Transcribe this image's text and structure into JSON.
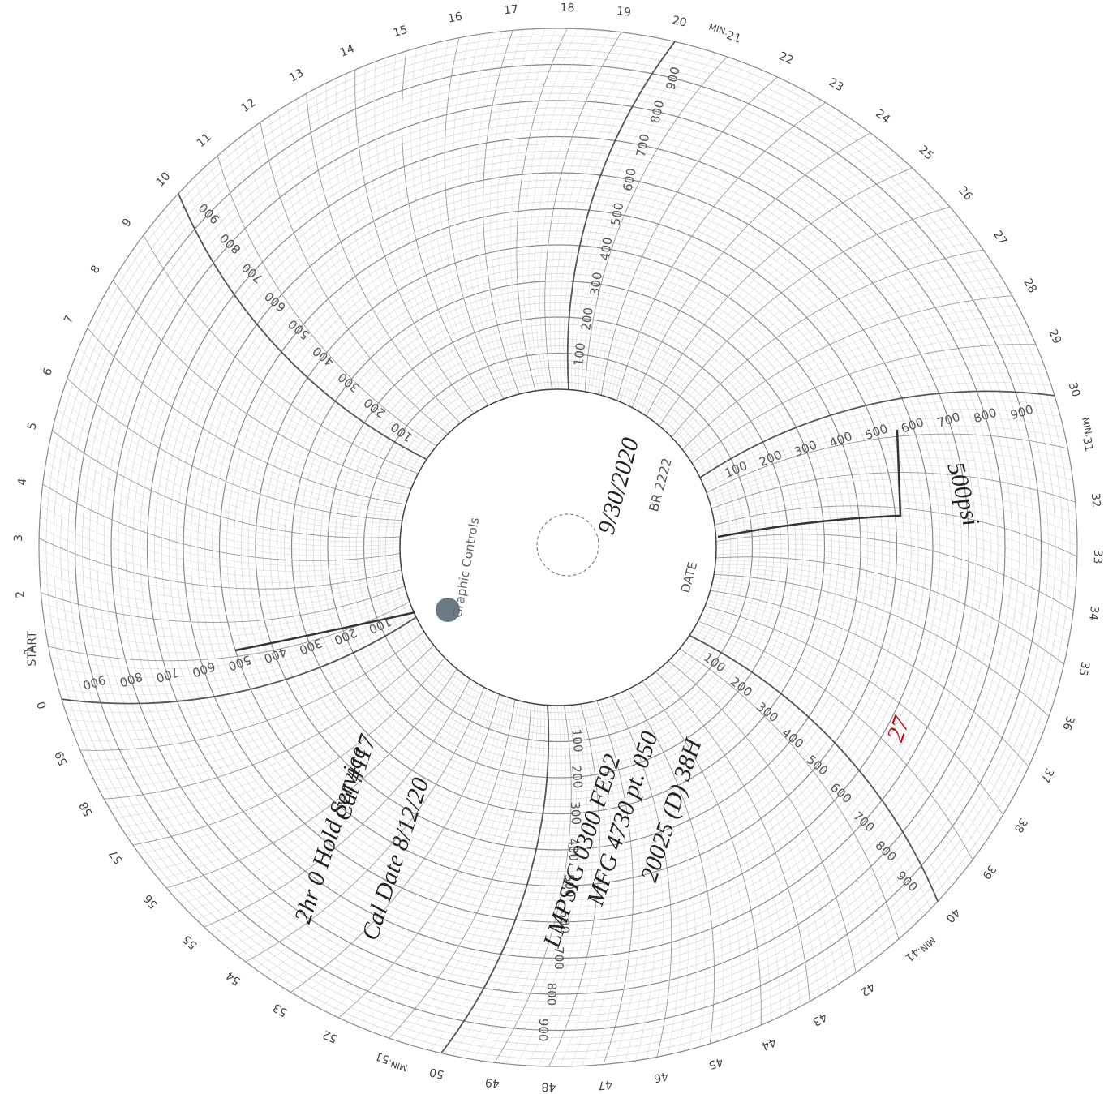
{
  "chart_paper": {
    "minute_labels": [
      0,
      1,
      2,
      3,
      4,
      5,
      6,
      7,
      8,
      9,
      10,
      11,
      12,
      13,
      14,
      15,
      16,
      17,
      18,
      19,
      20,
      21,
      22,
      23,
      24,
      25,
      26,
      27,
      28,
      29,
      30,
      31,
      32,
      33,
      34,
      35,
      36,
      37,
      38,
      39,
      40,
      41,
      42,
      43,
      44,
      45,
      46,
      47,
      48,
      49,
      50,
      51,
      52,
      53,
      54,
      55,
      56,
      57,
      58,
      59
    ],
    "min_label": "MIN.",
    "min_label_minutes": [
      20,
      30,
      40,
      50
    ],
    "start_label": "START",
    "scale_labels": [
      100,
      200,
      300,
      400,
      500,
      600,
      700,
      800,
      900
    ],
    "scale_label_minutes": [
      0,
      10,
      20,
      30,
      40,
      48
    ],
    "brand": "Graphic Controls",
    "date_label": "DATE",
    "chart_code": "BR 2222"
  },
  "annotations": [
    "9/30/2020",
    "500psi",
    "2hr 0 Hold Service",
    "Cal Date 8/12/20",
    "Cal #117",
    "LMPSIG 0300 FE92",
    "MFG 4730 pt. 050",
    "20025 (D) 38H",
    "27"
  ]
}
